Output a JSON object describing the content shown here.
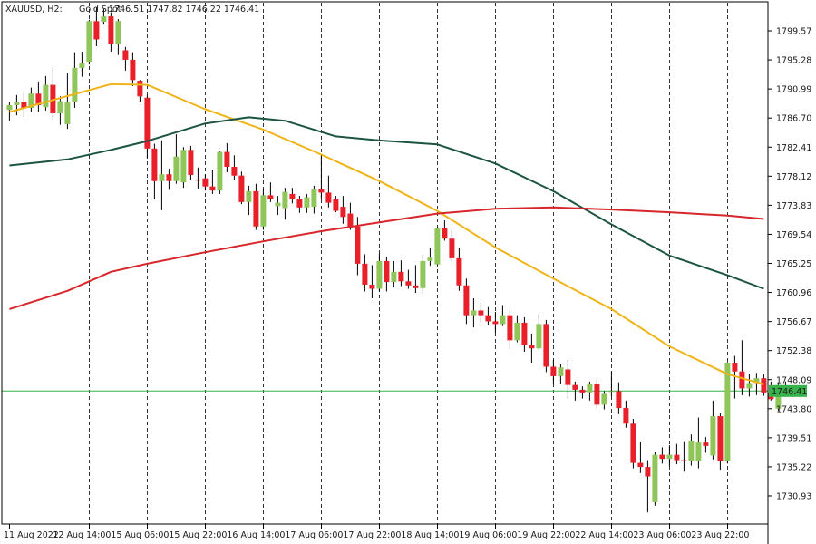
{
  "header": {
    "symbol": "XAUUSD, H2:",
    "name": "Gold Spot",
    "ohlc": "1746.51 1747.82 1746.22 1746.41"
  },
  "colors": {
    "bull": "#8fc65a",
    "bear": "#e8202a",
    "ma_fast": "#f0b418",
    "ma_mid": "#1c5442",
    "ma_slow": "#d8262a",
    "current_line": "#37b24d",
    "grid": "#333333"
  },
  "chart_data": {
    "type": "candlestick",
    "title": "XAUUSD, H2:  Gold Spot",
    "timeframe": "H2",
    "grid": "vertical dashed",
    "ylim": [
      1727.0,
      1803.0
    ],
    "y_ticks": [
      "1799.57",
      "1795.28",
      "1790.99",
      "1786.70",
      "1782.41",
      "1778.12",
      "1773.83",
      "1769.54",
      "1765.25",
      "1760.96",
      "1756.67",
      "1752.38",
      "1748.09",
      "1743.80",
      "1739.51",
      "1735.22",
      "1730.93"
    ],
    "x_labels": [
      {
        "label": "11 Aug 2022",
        "bar": 0
      },
      {
        "label": "12 Aug 14:00",
        "bar": 11
      },
      {
        "label": "15 Aug 06:00",
        "bar": 19
      },
      {
        "label": "15 Aug 22:00",
        "bar": 27
      },
      {
        "label": "16 Aug 14:00",
        "bar": 35
      },
      {
        "label": "17 Aug 06:00",
        "bar": 43
      },
      {
        "label": "17 Aug 22:00",
        "bar": 51
      },
      {
        "label": "18 Aug 14:00",
        "bar": 59
      },
      {
        "label": "19 Aug 06:00",
        "bar": 67
      },
      {
        "label": "19 Aug 22:00",
        "bar": 75
      },
      {
        "label": "22 Aug 14:00",
        "bar": 83
      },
      {
        "label": "23 Aug 06:00",
        "bar": 91
      },
      {
        "label": "23 Aug 22:00",
        "bar": 99
      }
    ],
    "current_price": 1746.41,
    "current_price_label": "1746.41",
    "candles": [
      [
        1787.9,
        1789.0,
        1786.3,
        1788.6
      ],
      [
        1788.6,
        1790.1,
        1787.1,
        1789.0
      ],
      [
        1789.0,
        1790.4,
        1786.8,
        1788.2
      ],
      [
        1788.2,
        1791.2,
        1787.6,
        1790.3
      ],
      [
        1790.3,
        1792.1,
        1787.6,
        1788.6
      ],
      [
        1788.3,
        1792.9,
        1787.8,
        1791.6
      ],
      [
        1791.6,
        1794.2,
        1786.4,
        1787.4
      ],
      [
        1787.4,
        1789.9,
        1785.7,
        1789.2
      ],
      [
        1785.8,
        1793.4,
        1785.1,
        1789.1
      ],
      [
        1789.1,
        1796.4,
        1788.2,
        1794.1
      ],
      [
        1794.1,
        1796.5,
        1792.8,
        1794.8
      ],
      [
        1795.0,
        1801.2,
        1794.6,
        1801.0
      ],
      [
        1801.0,
        1803.0,
        1797.3,
        1798.3
      ],
      [
        1800.9,
        1802.8,
        1800.5,
        1801.7
      ],
      [
        1801.7,
        1802.3,
        1796.5,
        1797.6
      ],
      [
        1797.6,
        1801.3,
        1796.0,
        1801.0
      ],
      [
        1796.7,
        1797.2,
        1793.7,
        1795.3
      ],
      [
        1795.3,
        1796.4,
        1791.4,
        1792.3
      ],
      [
        1792.2,
        1792.3,
        1789.0,
        1789.9
      ],
      [
        1789.7,
        1790.1,
        1780.8,
        1782.2
      ],
      [
        1782.2,
        1782.9,
        1774.7,
        1777.4
      ],
      [
        1777.4,
        1783.4,
        1773.1,
        1778.4
      ],
      [
        1778.4,
        1779.2,
        1776.1,
        1777.4
      ],
      [
        1777.4,
        1784.3,
        1777.0,
        1781.0
      ],
      [
        1777.2,
        1782.4,
        1776.4,
        1782.0
      ],
      [
        1782.0,
        1782.6,
        1777.5,
        1778.3
      ],
      [
        1777.6,
        1779.4,
        1776.3,
        1777.5
      ],
      [
        1777.8,
        1778.4,
        1776.0,
        1776.6
      ],
      [
        1776.6,
        1779.1,
        1775.5,
        1776.0
      ],
      [
        1776.0,
        1781.9,
        1775.5,
        1781.7
      ],
      [
        1781.7,
        1783.0,
        1778.7,
        1779.5
      ],
      [
        1779.5,
        1781.2,
        1777.6,
        1778.2
      ],
      [
        1778.2,
        1778.8,
        1774.0,
        1774.3
      ],
      [
        1774.3,
        1776.7,
        1772.4,
        1775.9
      ],
      [
        1775.9,
        1777.0,
        1770.2,
        1770.7
      ],
      [
        1770.7,
        1776.2,
        1770.2,
        1775.3
      ],
      [
        1775.3,
        1777.2,
        1774.3,
        1774.7
      ],
      [
        1773.7,
        1775.2,
        1772.4,
        1774.2
      ],
      [
        1773.4,
        1776.4,
        1771.7,
        1775.8
      ],
      [
        1775.5,
        1776.4,
        1774.1,
        1774.7
      ],
      [
        1774.7,
        1775.2,
        1772.7,
        1773.5
      ],
      [
        1773.5,
        1775.5,
        1772.7,
        1775.0
      ],
      [
        1773.6,
        1776.7,
        1772.6,
        1776.2
      ],
      [
        1776.2,
        1781.2,
        1774.7,
        1775.7
      ],
      [
        1775.7,
        1778.2,
        1773.5,
        1774.2
      ],
      [
        1774.7,
        1775.2,
        1772.8,
        1773.0
      ],
      [
        1773.6,
        1775.2,
        1771.1,
        1772.1
      ],
      [
        1772.6,
        1774.2,
        1770.2,
        1770.7
      ],
      [
        1770.7,
        1772.1,
        1763.5,
        1765.2
      ],
      [
        1765.2,
        1766.6,
        1761.1,
        1762.1
      ],
      [
        1762.1,
        1765.0,
        1760.1,
        1761.5
      ],
      [
        1761.5,
        1766.7,
        1761.1,
        1765.6
      ],
      [
        1765.6,
        1766.2,
        1761.1,
        1762.5
      ],
      [
        1762.5,
        1765.6,
        1761.7,
        1764.0
      ],
      [
        1764.0,
        1765.7,
        1761.9,
        1762.6
      ],
      [
        1762.6,
        1764.3,
        1761.5,
        1762.0
      ],
      [
        1762.0,
        1765.0,
        1760.9,
        1761.6
      ],
      [
        1761.6,
        1766.5,
        1760.7,
        1765.6
      ],
      [
        1765.6,
        1767.6,
        1764.9,
        1766.1
      ],
      [
        1765.1,
        1770.6,
        1765.0,
        1770.4
      ],
      [
        1770.4,
        1771.6,
        1768.6,
        1768.9
      ],
      [
        1768.9,
        1770.3,
        1765.5,
        1766.0
      ],
      [
        1766.0,
        1767.6,
        1761.2,
        1762.0
      ],
      [
        1762.0,
        1763.0,
        1756.3,
        1757.6
      ],
      [
        1757.6,
        1760.1,
        1755.8,
        1758.3
      ],
      [
        1758.3,
        1759.5,
        1756.6,
        1757.6
      ],
      [
        1757.6,
        1758.8,
        1756.1,
        1756.7
      ],
      [
        1756.7,
        1758.1,
        1755.0,
        1756.3
      ],
      [
        1756.3,
        1759.1,
        1756.0,
        1757.6
      ],
      [
        1757.6,
        1758.3,
        1752.7,
        1753.9
      ],
      [
        1753.9,
        1757.6,
        1753.6,
        1756.5
      ],
      [
        1756.5,
        1757.3,
        1752.2,
        1753.2
      ],
      [
        1753.2,
        1754.9,
        1750.6,
        1752.7
      ],
      [
        1752.7,
        1757.8,
        1752.4,
        1756.3
      ],
      [
        1756.3,
        1756.9,
        1749.2,
        1750.0
      ],
      [
        1750.0,
        1751.0,
        1747.4,
        1748.6
      ],
      [
        1748.6,
        1750.4,
        1747.5,
        1749.9
      ],
      [
        1749.6,
        1751.0,
        1745.3,
        1747.3
      ],
      [
        1747.3,
        1747.8,
        1745.0,
        1746.6
      ],
      [
        1746.6,
        1747.1,
        1745.3,
        1746.2
      ],
      [
        1746.2,
        1747.8,
        1745.0,
        1747.5
      ],
      [
        1747.5,
        1748.1,
        1743.8,
        1744.4
      ],
      [
        1744.4,
        1746.4,
        1743.7,
        1746.0
      ],
      [
        1746.4,
        1749.3,
        1745.6,
        1746.4
      ],
      [
        1746.4,
        1747.7,
        1743.0,
        1743.9
      ],
      [
        1743.9,
        1745.0,
        1741.0,
        1741.6
      ],
      [
        1741.6,
        1742.3,
        1735.0,
        1735.8
      ],
      [
        1735.8,
        1738.9,
        1734.3,
        1735.2
      ],
      [
        1735.2,
        1736.2,
        1728.5,
        1733.8
      ],
      [
        1730.0,
        1737.4,
        1729.5,
        1737.0
      ],
      [
        1737.0,
        1738.1,
        1735.7,
        1736.4
      ],
      [
        1736.4,
        1738.4,
        1735.3,
        1737.0
      ],
      [
        1737.0,
        1738.6,
        1735.6,
        1736.2
      ],
      [
        1736.2,
        1739.0,
        1734.5,
        1736.1
      ],
      [
        1736.1,
        1740.0,
        1735.4,
        1739.1
      ],
      [
        1736.1,
        1742.5,
        1735.0,
        1738.8
      ],
      [
        1738.8,
        1739.6,
        1737.3,
        1738.3
      ],
      [
        1736.9,
        1745.0,
        1736.3,
        1742.7
      ],
      [
        1742.7,
        1743.1,
        1734.8,
        1736.1
      ],
      [
        1736.1,
        1750.7,
        1735.7,
        1750.6
      ],
      [
        1750.6,
        1751.6,
        1745.3,
        1749.3
      ],
      [
        1749.3,
        1753.9,
        1745.8,
        1746.8
      ],
      [
        1746.8,
        1749.0,
        1745.6,
        1747.6
      ],
      [
        1747.6,
        1749.1,
        1745.8,
        1748.3
      ],
      [
        1748.3,
        1748.9,
        1745.7,
        1746.2
      ],
      [
        1746.2,
        1747.8,
        1745.0,
        1745.2
      ],
      [
        1743.8,
        1747.6,
        1743.5,
        1747.3
      ],
      [
        1746.51,
        1747.82,
        1746.22,
        1746.41
      ]
    ],
    "series": [
      {
        "type": "line",
        "color": "#f0b418",
        "points": [
          [
            0,
            1787.6
          ],
          [
            14,
            1791.7
          ],
          [
            19,
            1791.6
          ],
          [
            27,
            1788.0
          ],
          [
            35,
            1785.0
          ],
          [
            43,
            1781.3
          ],
          [
            51,
            1777.4
          ],
          [
            59,
            1773.0
          ],
          [
            67,
            1767.6
          ],
          [
            75,
            1763.0
          ],
          [
            83,
            1758.5
          ],
          [
            91,
            1753.0
          ],
          [
            99,
            1748.9
          ],
          [
            104,
            1747.4
          ]
        ]
      },
      {
        "type": "line",
        "color": "#1c5442",
        "points": [
          [
            0,
            1779.7
          ],
          [
            8,
            1780.6
          ],
          [
            14,
            1782.0
          ],
          [
            19,
            1783.3
          ],
          [
            27,
            1785.9
          ],
          [
            33,
            1786.8
          ],
          [
            38,
            1786.3
          ],
          [
            45,
            1784.0
          ],
          [
            51,
            1783.4
          ],
          [
            59,
            1782.8
          ],
          [
            67,
            1780.0
          ],
          [
            75,
            1775.9
          ],
          [
            83,
            1771.0
          ],
          [
            91,
            1766.4
          ],
          [
            99,
            1763.5
          ],
          [
            104,
            1761.5
          ]
        ]
      },
      {
        "type": "line",
        "color": "#d8262a",
        "points": [
          [
            0,
            1758.5
          ],
          [
            8,
            1761.2
          ],
          [
            14,
            1764.0
          ],
          [
            19,
            1765.2
          ],
          [
            27,
            1766.9
          ],
          [
            35,
            1768.5
          ],
          [
            43,
            1770.0
          ],
          [
            51,
            1771.3
          ],
          [
            59,
            1772.6
          ],
          [
            67,
            1773.3
          ],
          [
            75,
            1773.5
          ],
          [
            83,
            1773.2
          ],
          [
            91,
            1772.8
          ],
          [
            99,
            1772.3
          ],
          [
            104,
            1771.8
          ]
        ]
      }
    ]
  }
}
